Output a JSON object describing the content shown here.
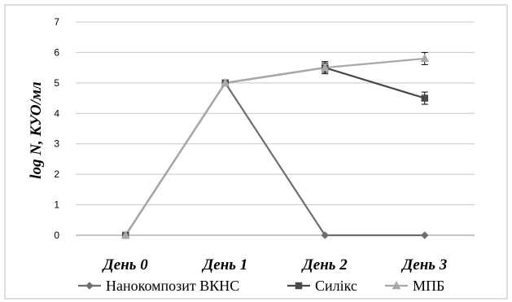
{
  "chart_data": {
    "type": "line",
    "categories": [
      "День 0",
      "День 1",
      "День 2",
      "День 3"
    ],
    "ylabel": "log N, КУО/мл",
    "xlabel": "",
    "title": "",
    "ylim": [
      0,
      7
    ],
    "yticks": [
      "0",
      "1",
      "2",
      "3",
      "4",
      "5",
      "6",
      "7"
    ],
    "grid": "horizontal",
    "legend_position": "bottom",
    "series": [
      {
        "name": "Нанокомпозит ВКНС",
        "values": [
          0,
          5,
          0,
          0
        ],
        "errors": [
          0,
          0,
          0,
          0
        ],
        "color": "#6e6e6e",
        "marker": "diamond"
      },
      {
        "name": "Силікс",
        "values": [
          0,
          5,
          5.5,
          4.5
        ],
        "errors": [
          0,
          0,
          0.2,
          0.2
        ],
        "color": "#4a4a4a",
        "marker": "square"
      },
      {
        "name": "МПБ",
        "values": [
          0,
          5,
          5.5,
          5.8
        ],
        "errors": [
          0,
          0,
          0.15,
          0.2
        ],
        "color": "#a9a9a9",
        "marker": "triangle"
      }
    ]
  }
}
